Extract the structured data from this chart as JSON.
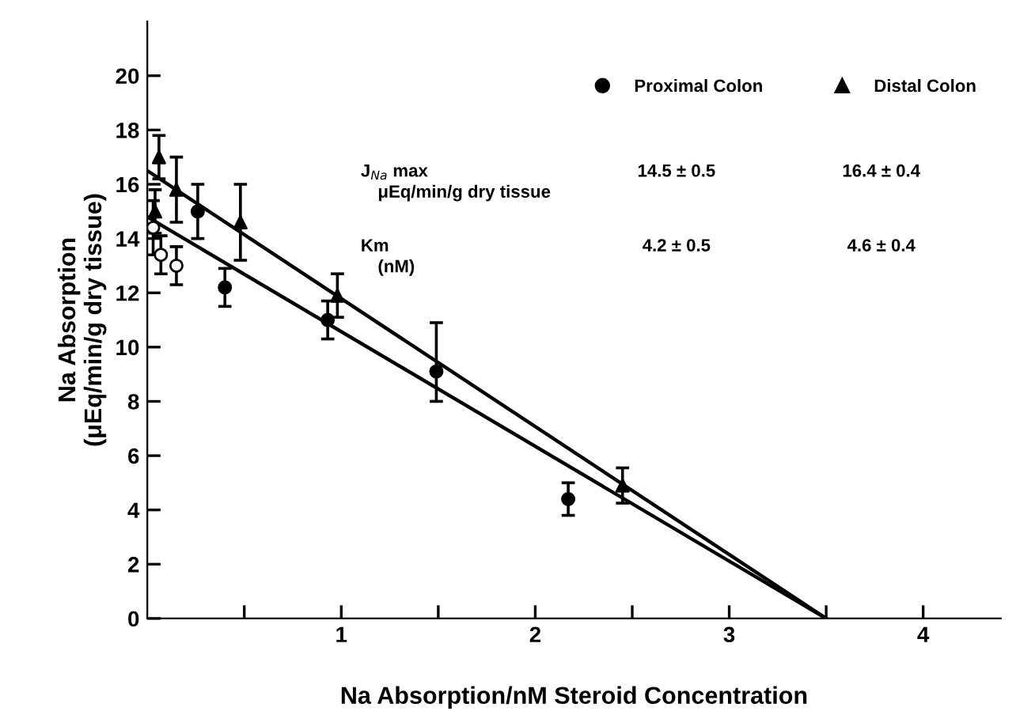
{
  "chart_data": {
    "type": "scatter",
    "xlabel": "Na Absorption/nM Steroid Concentration",
    "ylabel": "Na Absorption\n(μEq/min/g dry tissue)",
    "xlim": [
      0,
      4.4
    ],
    "ylim": [
      0,
      22
    ],
    "xticks": [
      {
        "value": 0.5,
        "label": null
      },
      1,
      {
        "value": 1.5,
        "label": null
      },
      2,
      {
        "value": 2.5,
        "label": null
      },
      3,
      {
        "value": 3.5,
        "label": null
      },
      4
    ],
    "yticks": [
      0,
      2,
      4,
      6,
      8,
      10,
      12,
      14,
      16,
      18,
      20
    ],
    "grid": false,
    "legend": "top right",
    "series": [
      {
        "name": "Proximal Colon",
        "color": "#000000",
        "marker": "circle",
        "x": [
          0.26,
          0.4,
          0.93,
          1.49,
          2.17
        ],
        "values": [
          15.0,
          12.2,
          11.0,
          9.1,
          4.4
        ],
        "errors": [
          1.0,
          0.7,
          0.7,
          [
            8.0,
            10.9
          ],
          0.6
        ]
      },
      {
        "name": "Distal Colon",
        "color": "#000000",
        "marker": "triangle",
        "x": [
          0.04,
          0.06,
          0.15,
          0.48,
          0.98,
          2.45
        ],
        "values": [
          15.0,
          17.0,
          15.8,
          14.6,
          11.9,
          4.9
        ],
        "errors": [
          0.8,
          0.8,
          1.2,
          1.4,
          0.8,
          0.65
        ]
      },
      {
        "color": "#ffffff",
        "marker": "circle",
        "x": [
          0.03,
          0.07,
          0.15
        ],
        "values": [
          14.4,
          13.4,
          13.0
        ],
        "errors": [
          1.0,
          0.7,
          0.7
        ]
      },
      {
        "type": "line",
        "color": "#000000",
        "marker": "none",
        "x": [
          0,
          3.5
        ],
        "values": [
          14.8,
          0
        ]
      },
      {
        "type": "line",
        "color": "#000000",
        "marker": "none",
        "x": [
          0,
          3.5
        ],
        "values": [
          16.5,
          0
        ]
      }
    ],
    "annotations": [
      "J$_{Na}$ max",
      "μEq/min/g dry tissue",
      "14.5 ± 0.5",
      "16.4 ± 0.4",
      "Km",
      "(nM)",
      "4.2 ± 0.5",
      "4.6 ± 0.4"
    ]
  }
}
